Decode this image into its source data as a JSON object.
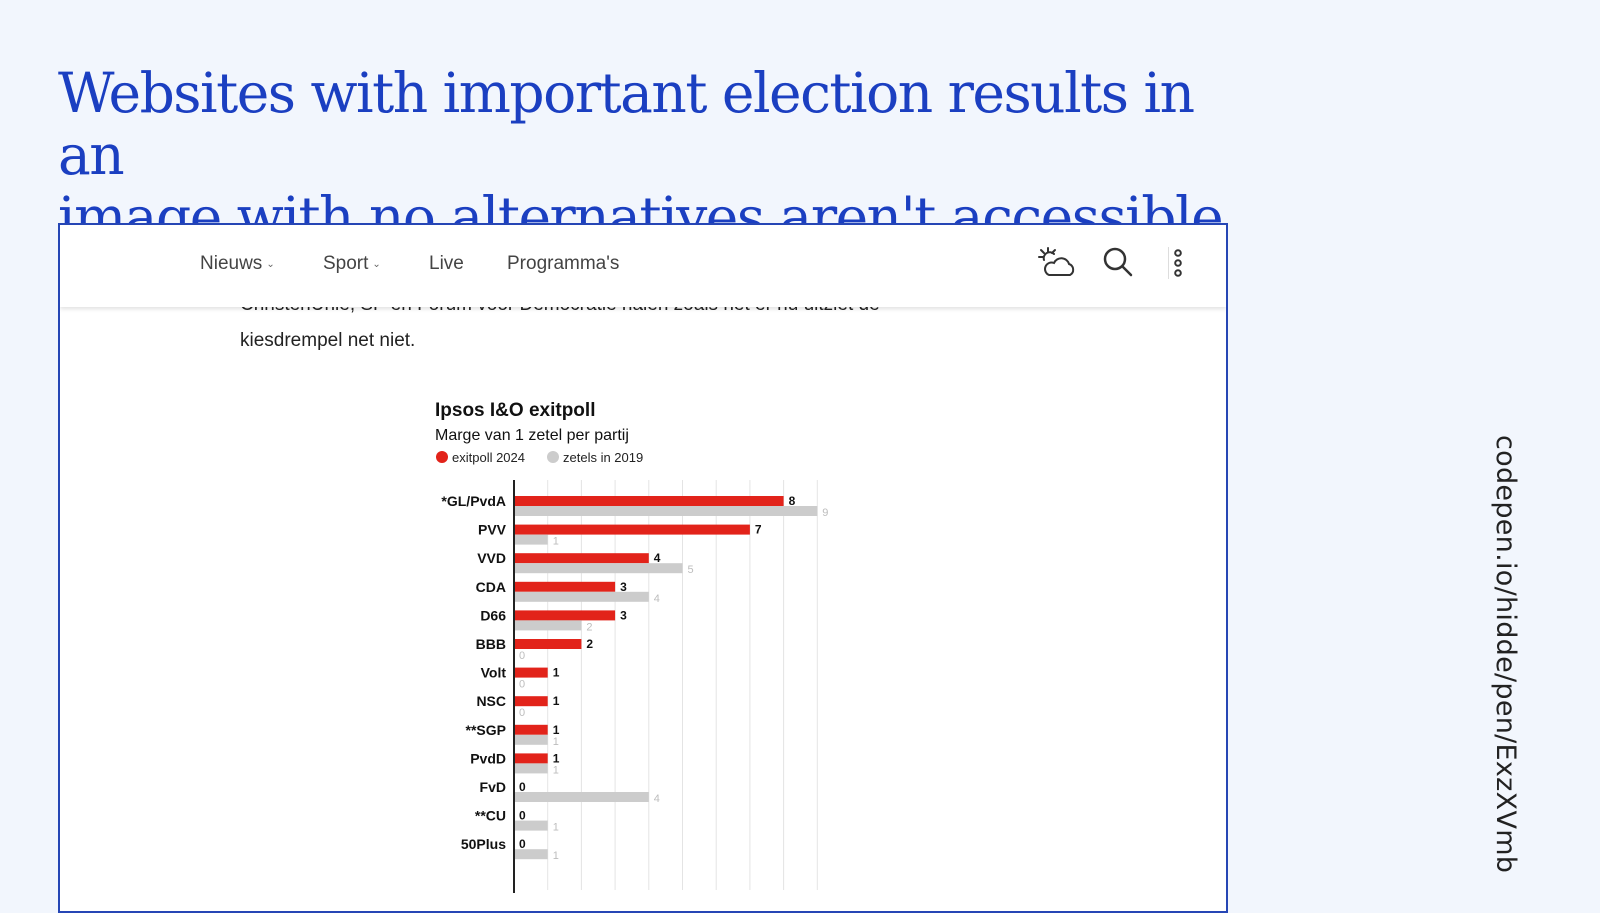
{
  "slide": {
    "title_line1": "Websites with important election results in an",
    "title_line2": "image with no alternatives aren't accessible",
    "side_url": "codepen.io/hidde/pen/ExzXVmb",
    "accent_color": "#1b3fc1"
  },
  "nav": {
    "items": [
      {
        "label": "Nieuws",
        "has_dropdown": true
      },
      {
        "label": "Sport",
        "has_dropdown": true
      },
      {
        "label": "Live",
        "has_dropdown": false
      },
      {
        "label": "Programma's",
        "has_dropdown": false
      }
    ],
    "icons": [
      "weather-icon",
      "search-icon",
      "more-vertical-icon"
    ]
  },
  "article": {
    "partial_line": "ChristenUnie, SP en Forum voor Democratie halen zoals het er nu uitziet de",
    "line2": "kiesdrempel net niet."
  },
  "chart_data": {
    "type": "bar",
    "title": "Ipsos I&O exitpoll",
    "subtitle": "Marge van 1 zetel per partij",
    "legend": [
      {
        "name": "exitpoll 2024",
        "color": "#e2231a"
      },
      {
        "name": "zetels in 2019",
        "color": "#cccccc"
      }
    ],
    "categories": [
      "*GL/PvdA",
      "PVV",
      "VVD",
      "CDA",
      "D66",
      "BBB",
      "Volt",
      "NSC",
      "**SGP",
      "PvdD",
      "FvD",
      "**CU",
      "50Plus"
    ],
    "series": [
      {
        "name": "exitpoll 2024",
        "color": "#e2231a",
        "values": [
          8,
          7,
          4,
          3,
          3,
          2,
          1,
          1,
          1,
          1,
          0,
          0,
          0
        ]
      },
      {
        "name": "zetels in 2019",
        "color": "#cccccc",
        "values": [
          9,
          1,
          5,
          4,
          2,
          0,
          0,
          0,
          1,
          1,
          4,
          1,
          1
        ]
      }
    ],
    "xlim": [
      0,
      9
    ],
    "orientation": "horizontal",
    "grid": true,
    "legend_placement": "top-left"
  }
}
